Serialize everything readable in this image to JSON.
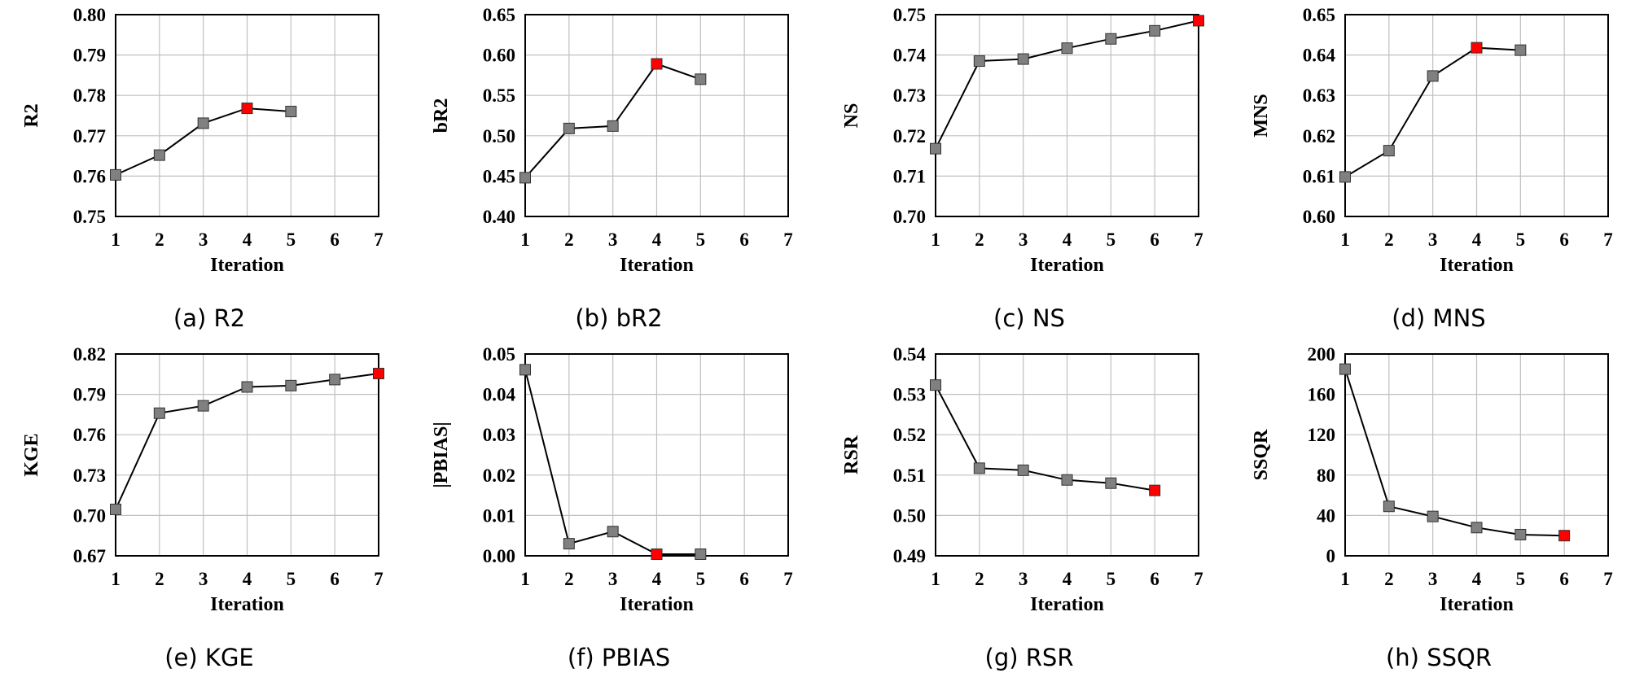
{
  "colors": {
    "marker": "#808080",
    "highlight": "#ff0000",
    "line": "#000000",
    "grid": "#c0c0c0",
    "frame": "#000000"
  },
  "chart_data": [
    {
      "type": "line",
      "caption": "(a) R2",
      "ylabel": "R2",
      "xlabel": "Iteration",
      "x_ticks": [
        1,
        2,
        3,
        4,
        5,
        6,
        7
      ],
      "xlim": [
        1,
        7
      ],
      "y_ticks": [
        "0.75",
        "0.76",
        "0.77",
        "0.78",
        "0.79",
        "0.80"
      ],
      "ylim": [
        0.75,
        0.8
      ],
      "grid": true,
      "x": [
        1,
        2,
        3,
        4,
        5
      ],
      "values": [
        0.7603,
        0.7652,
        0.7731,
        0.7768,
        0.776
      ],
      "highlight_index": 3
    },
    {
      "type": "line",
      "caption": "(b) bR2",
      "ylabel": "bR2",
      "xlabel": "Iteration",
      "x_ticks": [
        1,
        2,
        3,
        4,
        5,
        6,
        7
      ],
      "xlim": [
        1,
        7
      ],
      "y_ticks": [
        "0.40",
        "0.45",
        "0.50",
        "0.55",
        "0.60",
        "0.65"
      ],
      "ylim": [
        0.4,
        0.65
      ],
      "grid": true,
      "x": [
        1,
        2,
        3,
        4,
        5
      ],
      "values": [
        0.448,
        0.509,
        0.512,
        0.589,
        0.57
      ],
      "highlight_index": 3
    },
    {
      "type": "line",
      "caption": "(c) NS",
      "ylabel": "NS",
      "xlabel": "Iteration",
      "x_ticks": [
        1,
        2,
        3,
        4,
        5,
        6,
        7
      ],
      "xlim": [
        1,
        7
      ],
      "y_ticks": [
        "0.70",
        "0.71",
        "0.72",
        "0.73",
        "0.74",
        "0.75"
      ],
      "ylim": [
        0.7,
        0.75
      ],
      "grid": true,
      "x": [
        1,
        2,
        3,
        4,
        5,
        6,
        7
      ],
      "values": [
        0.7168,
        0.7385,
        0.739,
        0.7417,
        0.744,
        0.746,
        0.7485
      ],
      "highlight_index": 6
    },
    {
      "type": "line",
      "caption": "(d) MNS",
      "ylabel": "MNS",
      "xlabel": "Iteration",
      "x_ticks": [
        1,
        2,
        3,
        4,
        5,
        6,
        7
      ],
      "xlim": [
        1,
        7
      ],
      "y_ticks": [
        "0.60",
        "0.61",
        "0.62",
        "0.63",
        "0.64",
        "0.65"
      ],
      "ylim": [
        0.6,
        0.65
      ],
      "grid": true,
      "x": [
        1,
        2,
        3,
        4,
        5
      ],
      "values": [
        0.6098,
        0.6163,
        0.6348,
        0.6418,
        0.6412
      ],
      "highlight_index": 3
    },
    {
      "type": "line",
      "caption": "(e) KGE",
      "ylabel": "KGE",
      "xlabel": "Iteration",
      "x_ticks": [
        1,
        2,
        3,
        4,
        5,
        6,
        7
      ],
      "xlim": [
        1,
        7
      ],
      "y_ticks": [
        "0.67",
        "0.70",
        "0.73",
        "0.76",
        "0.79",
        "0.82"
      ],
      "ylim": [
        0.67,
        0.82
      ],
      "grid": true,
      "x": [
        1,
        2,
        3,
        4,
        5,
        6,
        7
      ],
      "values": [
        0.7045,
        0.776,
        0.7815,
        0.7955,
        0.7965,
        0.801,
        0.8055
      ],
      "highlight_index": 6
    },
    {
      "type": "line",
      "caption": "(f) PBIAS",
      "ylabel": "|PBIAS|",
      "xlabel": "Iteration",
      "x_ticks": [
        1,
        2,
        3,
        4,
        5,
        6,
        7
      ],
      "xlim": [
        1,
        7
      ],
      "y_ticks": [
        "0.00",
        "0.01",
        "0.02",
        "0.03",
        "0.04",
        "0.05"
      ],
      "ylim": [
        0.0,
        0.05
      ],
      "grid": true,
      "x": [
        1,
        2,
        3,
        4,
        5
      ],
      "values": [
        0.0461,
        0.003,
        0.006,
        0.0004,
        0.0004
      ],
      "highlight_index": 3
    },
    {
      "type": "line",
      "caption": "(g) RSR",
      "ylabel": "RSR",
      "xlabel": "Iteration",
      "x_ticks": [
        1,
        2,
        3,
        4,
        5,
        6,
        7
      ],
      "xlim": [
        1,
        7
      ],
      "y_ticks": [
        "0.49",
        "0.50",
        "0.51",
        "0.52",
        "0.53",
        "0.54"
      ],
      "ylim": [
        0.49,
        0.54
      ],
      "grid": true,
      "x": [
        1,
        2,
        3,
        4,
        5,
        6
      ],
      "values": [
        0.5323,
        0.5117,
        0.5112,
        0.5088,
        0.508,
        0.5062
      ],
      "highlight_index": 5
    },
    {
      "type": "line",
      "caption": "(h) SSQR",
      "ylabel": "SSQR",
      "xlabel": "Iteration",
      "x_ticks": [
        1,
        2,
        3,
        4,
        5,
        6,
        7
      ],
      "xlim": [
        1,
        7
      ],
      "y_ticks": [
        "0",
        "40",
        "80",
        "120",
        "160",
        "200"
      ],
      "ylim": [
        0,
        200
      ],
      "grid": true,
      "x": [
        1,
        2,
        3,
        4,
        5,
        6
      ],
      "values": [
        185,
        49,
        39,
        28,
        21,
        20
      ],
      "highlight_index": 5
    }
  ]
}
